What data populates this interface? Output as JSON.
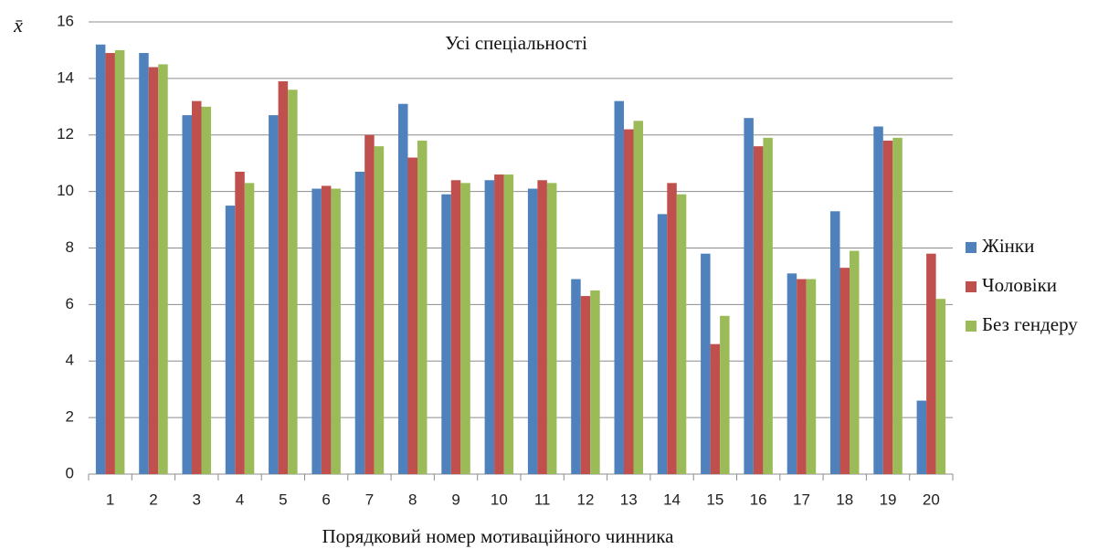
{
  "chart_data": {
    "type": "bar",
    "title": "Усі спеціальності",
    "y_label": "x̄",
    "x_label": "Порядковий номер мотиваційного чинника",
    "categories": [
      "1",
      "2",
      "3",
      "4",
      "5",
      "6",
      "7",
      "8",
      "9",
      "10",
      "11",
      "12",
      "13",
      "14",
      "15",
      "16",
      "17",
      "18",
      "19",
      "20"
    ],
    "series": [
      {
        "name": "Жінки",
        "color": "#4f81bd",
        "values": [
          15.2,
          14.9,
          12.7,
          9.5,
          12.7,
          10.1,
          10.7,
          13.1,
          9.9,
          10.4,
          10.1,
          6.9,
          13.2,
          9.2,
          7.8,
          12.6,
          7.1,
          9.3,
          12.3,
          2.6
        ]
      },
      {
        "name": "Чоловіки",
        "color": "#c0504d",
        "values": [
          14.9,
          14.4,
          13.2,
          10.7,
          13.9,
          10.2,
          12.0,
          11.2,
          10.4,
          10.6,
          10.4,
          6.3,
          12.2,
          10.3,
          4.6,
          11.6,
          6.9,
          7.3,
          11.8,
          7.8
        ]
      },
      {
        "name": "Без гендеру",
        "color": "#9bbb59",
        "values": [
          15.0,
          14.5,
          13.0,
          10.3,
          13.6,
          10.1,
          11.6,
          11.8,
          10.3,
          10.6,
          10.3,
          6.5,
          12.5,
          9.9,
          5.6,
          11.9,
          6.9,
          7.9,
          11.9,
          6.2
        ]
      }
    ],
    "ylim": [
      0,
      16
    ],
    "yticks": [
      0,
      2,
      4,
      6,
      8,
      10,
      12,
      14,
      16
    ],
    "grid": true,
    "legend": "right"
  }
}
